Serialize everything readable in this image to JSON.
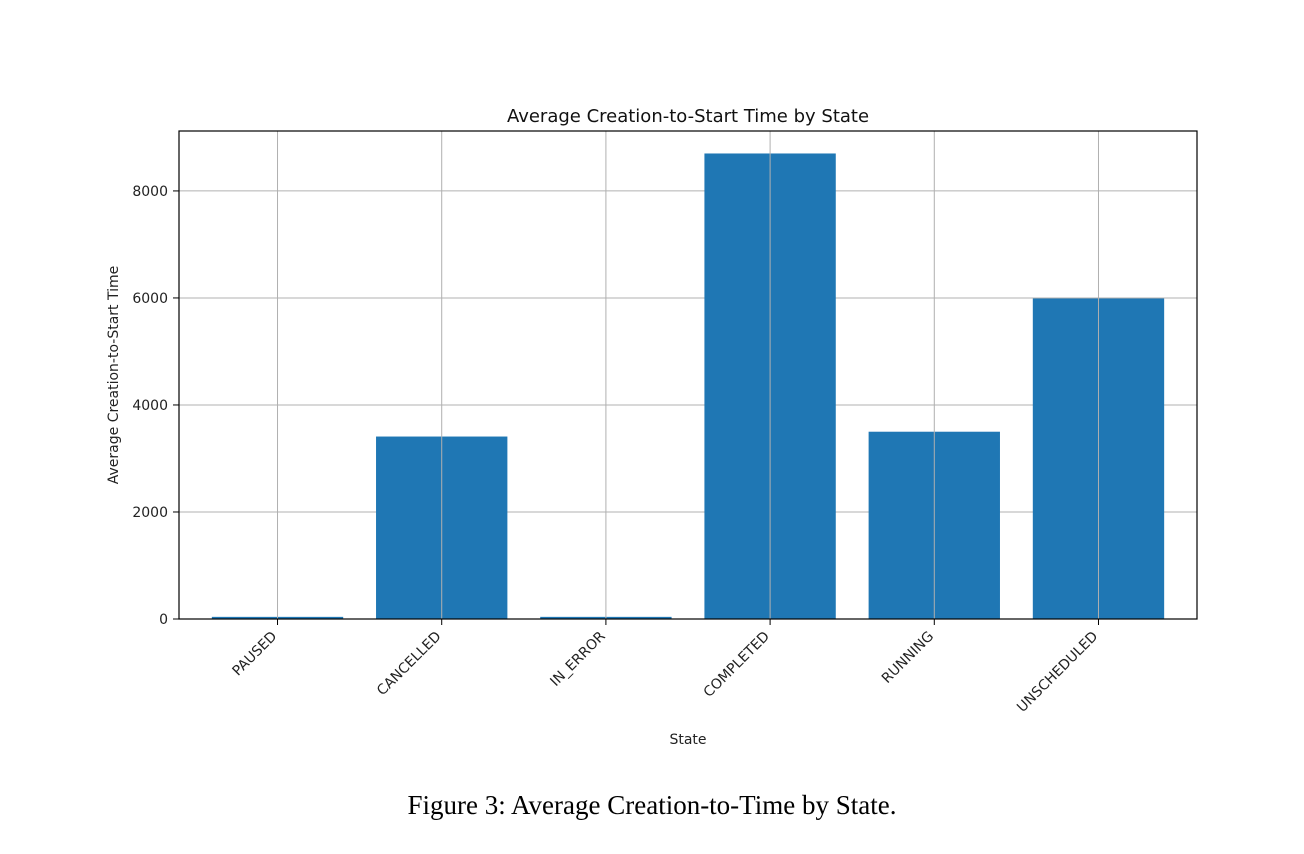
{
  "chart_data": {
    "type": "bar",
    "title": "Average Creation-to-Start Time by State",
    "xlabel": "State",
    "ylabel": "Average Creation-to-Start Time",
    "categories": [
      "PAUSED",
      "CANCELLED",
      "IN_ERROR",
      "COMPLETED",
      "RUNNING",
      "UNSCHEDULED"
    ],
    "values": [
      40,
      3410,
      40,
      8700,
      3500,
      5990
    ],
    "ylim": [
      0,
      9120
    ],
    "yticks": [
      0,
      2000,
      4000,
      6000,
      8000
    ],
    "grid": true,
    "bar_color": "#1f77b4",
    "grid_color": "#b0b0b0"
  },
  "caption": "Figure 3: Average Creation-to-Time by State."
}
